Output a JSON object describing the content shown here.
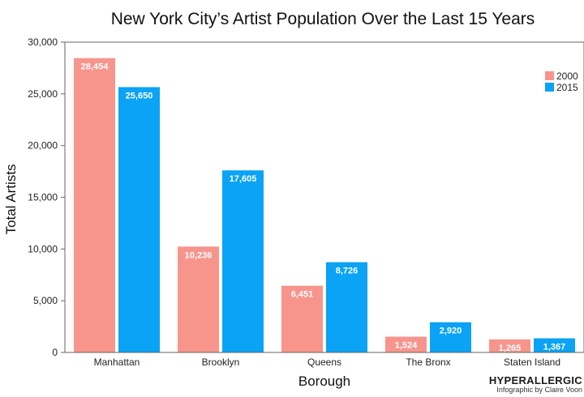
{
  "chart_data": {
    "type": "bar",
    "title": "New York City’s Artist Population Over the Last 15 Years",
    "xlabel": "Borough",
    "ylabel": "Total Artists",
    "categories": [
      "Manhattan",
      "Brooklyn",
      "Queens",
      "The Bronx",
      "Staten Island"
    ],
    "series": [
      {
        "name": "2000",
        "values": [
          28454,
          10236,
          6451,
          1524,
          1265
        ],
        "labels": [
          "28,454",
          "10,236",
          "6,451",
          "1,524",
          "1,265"
        ],
        "color": "#f7958d"
      },
      {
        "name": "2015",
        "values": [
          25650,
          17605,
          8726,
          2920,
          1367
        ],
        "labels": [
          "25,650",
          "17,605",
          "8,726",
          "2,920",
          "1,367"
        ],
        "color": "#0aa3f5"
      }
    ],
    "ylim": [
      0,
      30000
    ],
    "yticks": [
      0,
      5000,
      10000,
      15000,
      20000,
      25000,
      30000
    ],
    "ytick_labels": [
      "0",
      "5,000",
      "10,000",
      "15,000",
      "20,000",
      "25,000",
      "30,000"
    ],
    "grid": false,
    "legend_position": "top-right"
  },
  "credit": {
    "brand": "HYPERALLERGIC",
    "byline": "Infographic by Claire Voon"
  }
}
